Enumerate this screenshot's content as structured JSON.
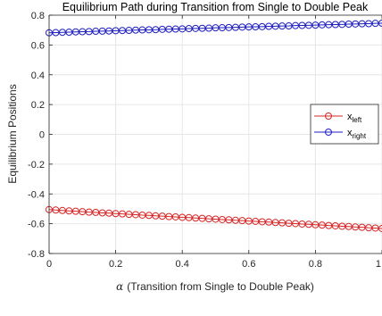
{
  "chart_data": {
    "type": "line",
    "title": "Equilibrium Path during Transition from Single to Double Peak",
    "xlabel_symbol": "α",
    "xlabel": "(Transition from Single to Double Peak)",
    "ylabel": "Equilibrium Positions",
    "xlim": [
      0,
      1
    ],
    "ylim": [
      -0.8,
      0.8
    ],
    "xticks": [
      0,
      0.2,
      0.4,
      0.6,
      0.8,
      1
    ],
    "xtick_labels": [
      "0",
      "0.2",
      "0.4",
      "0.6",
      "0.8",
      "1"
    ],
    "yticks": [
      -0.8,
      -0.6,
      -0.4,
      -0.2,
      0,
      0.2,
      0.4,
      0.6,
      0.8
    ],
    "ytick_labels": [
      "-0.8",
      "-0.6",
      "-0.4",
      "-0.2",
      "0",
      "0.2",
      "0.4",
      "0.6",
      "0.8"
    ],
    "grid": true,
    "legend_position": "right",
    "marker": "circle",
    "x": [
      0,
      0.02,
      0.04,
      0.06,
      0.08,
      0.1,
      0.12,
      0.14,
      0.16,
      0.18,
      0.2,
      0.22,
      0.24,
      0.26,
      0.28,
      0.3,
      0.32,
      0.34,
      0.36,
      0.38,
      0.4,
      0.42,
      0.44,
      0.46,
      0.48,
      0.5,
      0.52,
      0.54,
      0.56,
      0.58,
      0.6,
      0.62,
      0.64,
      0.66,
      0.68,
      0.7,
      0.72,
      0.74,
      0.76,
      0.78,
      0.8,
      0.82,
      0.84,
      0.86,
      0.88,
      0.9,
      0.92,
      0.94,
      0.96,
      0.98,
      1
    ],
    "series": [
      {
        "name": "x",
        "name_sub": "left",
        "color": "#d62728",
        "values": [
          -0.505,
          -0.508,
          -0.511,
          -0.514,
          -0.516,
          -0.519,
          -0.522,
          -0.524,
          -0.527,
          -0.529,
          -0.532,
          -0.534,
          -0.537,
          -0.539,
          -0.542,
          -0.544,
          -0.547,
          -0.549,
          -0.552,
          -0.554,
          -0.557,
          -0.559,
          -0.562,
          -0.564,
          -0.567,
          -0.569,
          -0.572,
          -0.574,
          -0.577,
          -0.579,
          -0.582,
          -0.584,
          -0.587,
          -0.589,
          -0.592,
          -0.594,
          -0.597,
          -0.599,
          -0.602,
          -0.604,
          -0.607,
          -0.609,
          -0.612,
          -0.614,
          -0.617,
          -0.619,
          -0.622,
          -0.624,
          -0.627,
          -0.629,
          -0.632
        ]
      },
      {
        "name": "x",
        "name_sub": "right",
        "color": "#1f1fbf",
        "values": [
          0.682,
          0.683,
          0.685,
          0.686,
          0.688,
          0.689,
          0.69,
          0.692,
          0.693,
          0.694,
          0.696,
          0.697,
          0.698,
          0.7,
          0.701,
          0.702,
          0.703,
          0.705,
          0.706,
          0.707,
          0.708,
          0.71,
          0.711,
          0.712,
          0.713,
          0.715,
          0.716,
          0.717,
          0.718,
          0.72,
          0.721,
          0.722,
          0.723,
          0.725,
          0.726,
          0.727,
          0.728,
          0.73,
          0.731,
          0.732,
          0.733,
          0.735,
          0.736,
          0.737,
          0.738,
          0.74,
          0.741,
          0.742,
          0.743,
          0.745,
          0.746
        ]
      }
    ]
  }
}
